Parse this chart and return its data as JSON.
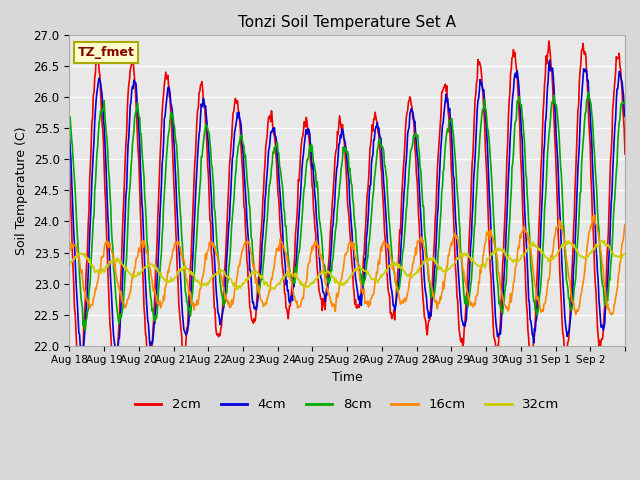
{
  "title": "Tonzi Soil Temperature Set A",
  "xlabel": "Time",
  "ylabel": "Soil Temperature (C)",
  "ylim": [
    22.0,
    27.0
  ],
  "yticks": [
    22.0,
    22.5,
    23.0,
    23.5,
    24.0,
    24.5,
    25.0,
    25.5,
    26.0,
    26.5,
    27.0
  ],
  "annotation_text": "TZ_fmet",
  "annotation_bbox_fc": "#ffffcc",
  "annotation_bbox_ec": "#aaaa00",
  "line_colors": {
    "2cm": "#ee0000",
    "4cm": "#0000dd",
    "8cm": "#00aa00",
    "16cm": "#ff8800",
    "32cm": "#cccc00"
  },
  "line_labels": [
    "2cm",
    "4cm",
    "8cm",
    "16cm",
    "32cm"
  ],
  "bg_color": "#e8e8e8",
  "grid_color": "#ffffff",
  "n_days": 16,
  "points_per_day": 48,
  "xtick_labels": [
    "Aug 18",
    "Aug 19",
    "Aug 20",
    "Aug 21",
    "Aug 22",
    "Aug 23",
    "Aug 24",
    "Aug 25",
    "Aug 26",
    "Aug 27",
    "Aug 28",
    "Aug 29",
    "Aug 30",
    "Aug 31",
    "Sep 1",
    "Sep 2"
  ]
}
